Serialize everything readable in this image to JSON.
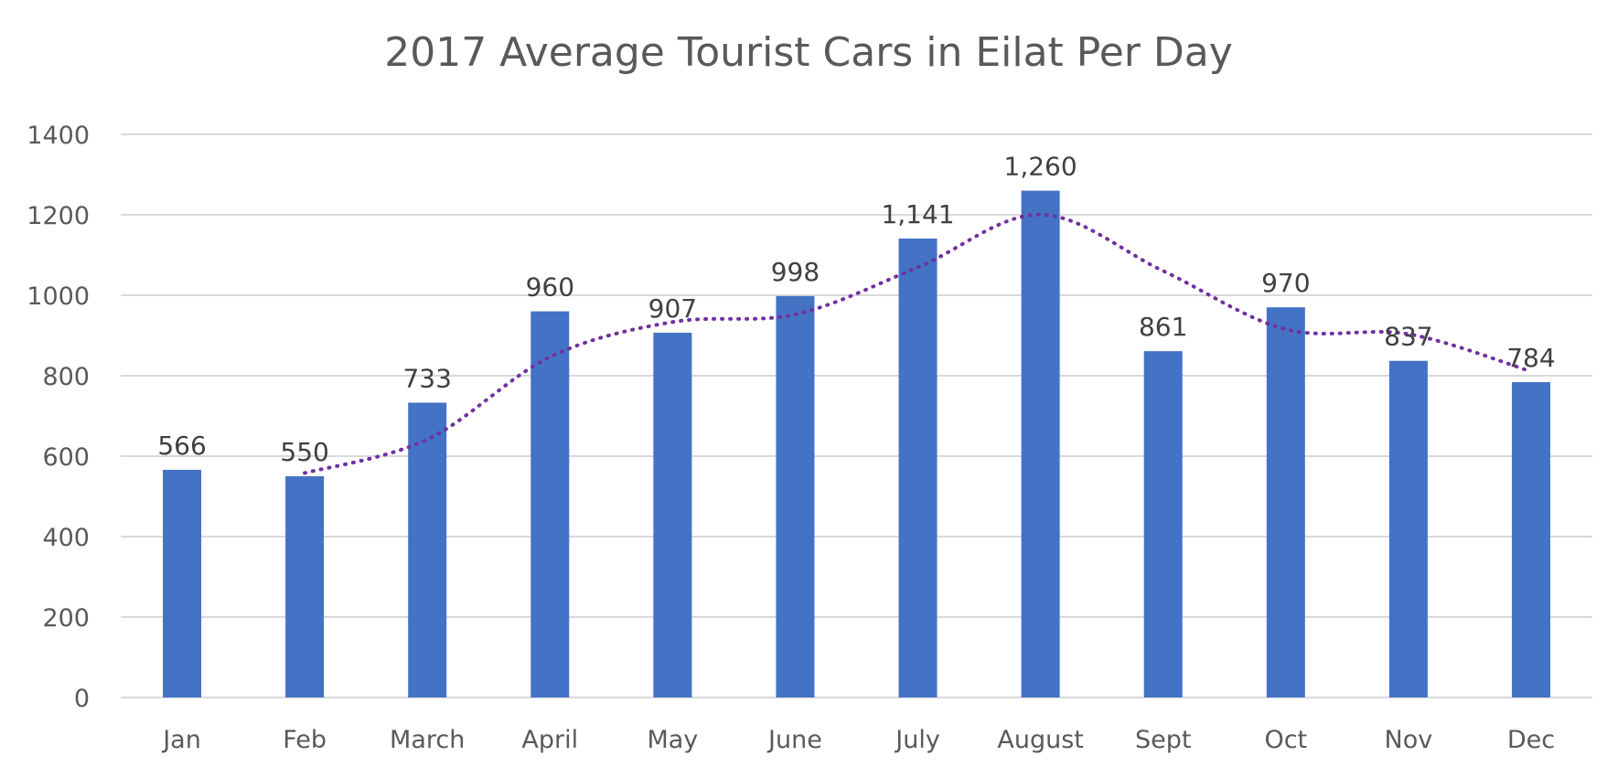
{
  "chart_data": {
    "type": "bar",
    "title": "2017 Average Tourist Cars in Eilat Per Day",
    "xlabel": "",
    "ylabel": "",
    "categories": [
      "Jan",
      "Feb",
      "March",
      "April",
      "May",
      "June",
      "July",
      "August",
      "Sept",
      "Oct",
      "Nov",
      "Dec"
    ],
    "values": [
      566,
      550,
      733,
      960,
      907,
      998,
      1141,
      1260,
      861,
      970,
      837,
      784
    ],
    "data_labels": [
      "566",
      "550",
      "733",
      "960",
      "907",
      "998",
      "1,141",
      "1,260",
      "861",
      "970",
      "837",
      "784"
    ],
    "ylim": [
      0,
      1400
    ],
    "yticks": [
      0,
      200,
      400,
      600,
      800,
      1000,
      1200,
      1400
    ],
    "ytick_labels": [
      "0",
      "200",
      "400",
      "600",
      "800",
      "1000",
      "1200",
      "1400"
    ],
    "grid": true,
    "legend": "none",
    "trendline": {
      "type": "moving-average",
      "period": 2,
      "style": "dotted"
    },
    "colors": {
      "bar": "#4472c4",
      "trendline": "#7030a0",
      "grid": "#d9d9d9",
      "text": "#595959",
      "data_label": "#404040"
    }
  }
}
